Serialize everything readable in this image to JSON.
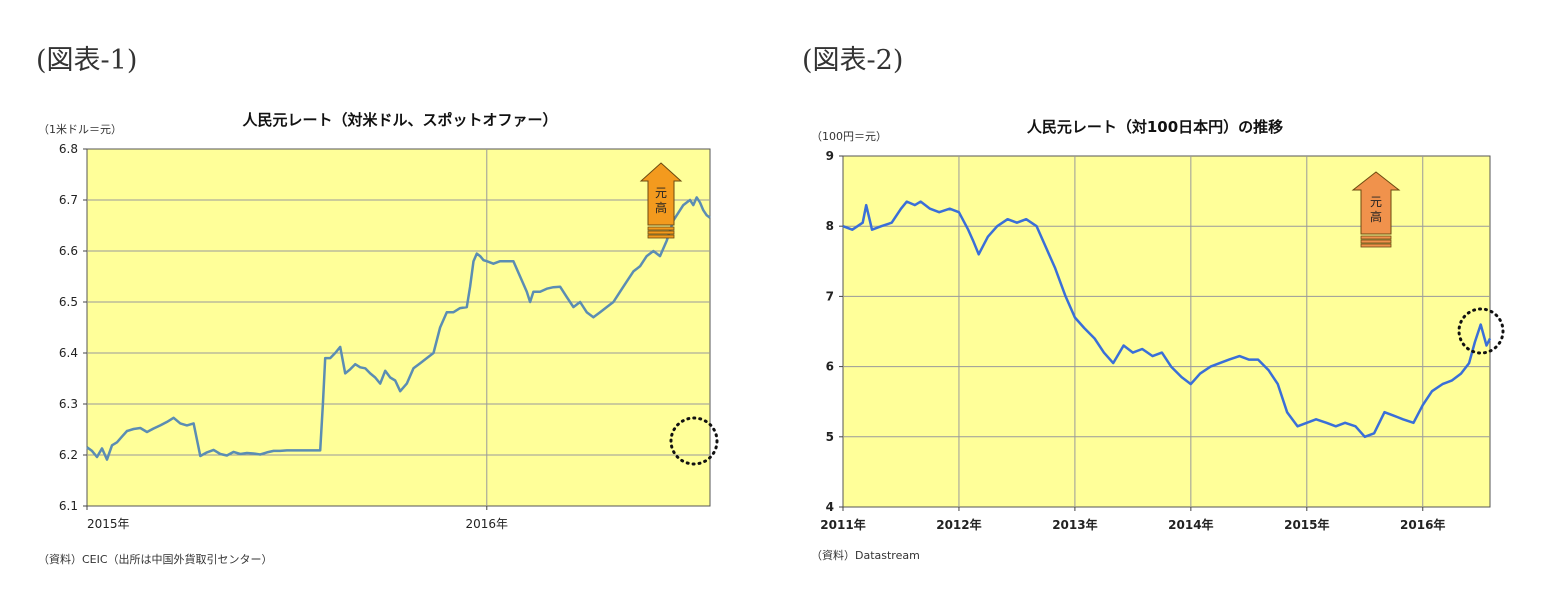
{
  "headings": [
    "(図表-1)",
    "(図表-2)"
  ],
  "colors": {
    "plot_bg": "#FFFF99",
    "grid": "#9A9A9A",
    "line1": "#5B8DB3",
    "line2": "#3A6FD8",
    "arrow1": "#F39A1E",
    "arrow2": "#F0924C"
  },
  "chart_data": [
    {
      "type": "line",
      "title": "人民元レート（対米ドル、スポットオファー）",
      "unit_label": "（1米ドル＝元）",
      "y_inverted": true,
      "ylim": [
        6.8,
        6.1
      ],
      "yticks": [
        "6.1",
        "6.2",
        "6.3",
        "6.4",
        "6.5",
        "6.6",
        "6.7",
        "6.8"
      ],
      "xlim": [
        0,
        18.7
      ],
      "x_tick_labels": [
        {
          "label": "2015年",
          "x": 0
        },
        {
          "label": "2016年",
          "x": 12
        }
      ],
      "arrow_label": [
        "元",
        "高"
      ],
      "source": "（資料）CEIC（出所は中国外貨取引センター）",
      "grid": true,
      "series": [
        {
          "x": [
            0,
            0.15,
            0.3,
            0.45,
            0.6,
            0.75,
            0.9,
            1.05,
            1.2,
            1.4,
            1.6,
            1.8,
            2.0,
            2.2,
            2.4,
            2.6,
            2.8,
            3.0,
            3.2,
            3.4,
            3.6,
            3.8,
            4.0,
            4.2,
            4.4,
            4.6,
            4.8,
            5.0,
            5.2,
            5.4,
            5.6,
            5.8,
            6.0,
            6.2,
            6.4,
            6.6,
            6.8,
            7.0,
            7.08,
            7.15,
            7.3,
            7.45,
            7.6,
            7.75,
            7.9,
            8.05,
            8.2,
            8.35,
            8.5,
            8.65,
            8.8,
            8.95,
            9.1,
            9.25,
            9.4,
            9.6,
            9.8,
            10.0,
            10.2,
            10.4,
            10.6,
            10.8,
            11.0,
            11.2,
            11.4,
            11.5,
            11.6,
            11.7,
            11.8,
            11.9,
            12.0,
            12.2,
            12.4,
            12.6,
            12.8,
            13.0,
            13.2,
            13.3,
            13.4,
            13.6,
            13.8,
            14.0,
            14.2,
            14.4,
            14.6,
            14.8,
            15.0,
            15.2,
            15.4,
            15.6,
            15.8,
            16.0,
            16.2,
            16.4,
            16.6,
            16.8,
            17.0,
            17.2,
            17.4,
            17.6,
            17.8,
            17.9,
            18.0,
            18.1,
            18.2,
            18.3,
            18.4,
            18.5,
            18.6,
            18.7
          ],
          "values": [
            6.215,
            6.208,
            6.196,
            6.213,
            6.191,
            6.219,
            6.225,
            6.236,
            6.247,
            6.251,
            6.253,
            6.245,
            6.252,
            6.258,
            6.265,
            6.273,
            6.262,
            6.258,
            6.262,
            6.198,
            6.205,
            6.21,
            6.202,
            6.199,
            6.206,
            6.202,
            6.204,
            6.203,
            6.201,
            6.205,
            6.208,
            6.208,
            6.209,
            6.209,
            6.209,
            6.209,
            6.209,
            6.209,
            6.3,
            6.39,
            6.39,
            6.4,
            6.412,
            6.36,
            6.368,
            6.378,
            6.372,
            6.37,
            6.36,
            6.352,
            6.34,
            6.365,
            6.352,
            6.346,
            6.325,
            6.34,
            6.37,
            6.38,
            6.39,
            6.4,
            6.45,
            6.48,
            6.48,
            6.488,
            6.49,
            6.53,
            6.58,
            6.595,
            6.59,
            6.582,
            6.58,
            6.575,
            6.58,
            6.58,
            6.58,
            6.55,
            6.52,
            6.5,
            6.52,
            6.52,
            6.526,
            6.529,
            6.53,
            6.51,
            6.49,
            6.5,
            6.48,
            6.47,
            6.48,
            6.49,
            6.5,
            6.52,
            6.54,
            6.56,
            6.57,
            6.59,
            6.6,
            6.59,
            6.62,
            6.66,
            6.68,
            6.69,
            6.695,
            6.7,
            6.69,
            6.705,
            6.695,
            6.68,
            6.67,
            6.665
          ]
        }
      ]
    },
    {
      "type": "line",
      "title": "人民元レート（対100日本円）の推移",
      "unit_label": "（100円＝元）",
      "y_inverted": false,
      "ylim": [
        4,
        9
      ],
      "yticks": [
        "4",
        "5",
        "6",
        "7",
        "8",
        "9"
      ],
      "xlim": [
        2011,
        2016.58
      ],
      "x_tick_labels": [
        {
          "label": "2011年",
          "x": 2011
        },
        {
          "label": "2012年",
          "x": 2012
        },
        {
          "label": "2013年",
          "x": 2013
        },
        {
          "label": "2014年",
          "x": 2014
        },
        {
          "label": "2015年",
          "x": 2015
        },
        {
          "label": "2016年",
          "x": 2016
        }
      ],
      "arrow_label": [
        "元",
        "高"
      ],
      "source": "（資料）Datastream",
      "grid": true,
      "series": [
        {
          "x": [
            2011.0,
            2011.08,
            2011.17,
            2011.2,
            2011.25,
            2011.33,
            2011.42,
            2011.5,
            2011.55,
            2011.62,
            2011.67,
            2011.75,
            2011.83,
            2011.92,
            2012.0,
            2012.08,
            2012.12,
            2012.17,
            2012.25,
            2012.33,
            2012.42,
            2012.5,
            2012.58,
            2012.67,
            2012.75,
            2012.83,
            2012.92,
            2013.0,
            2013.08,
            2013.17,
            2013.25,
            2013.33,
            2013.42,
            2013.5,
            2013.58,
            2013.67,
            2013.75,
            2013.83,
            2013.92,
            2014.0,
            2014.08,
            2014.17,
            2014.25,
            2014.33,
            2014.42,
            2014.5,
            2014.58,
            2014.67,
            2014.75,
            2014.83,
            2014.92,
            2015.0,
            2015.08,
            2015.17,
            2015.25,
            2015.33,
            2015.42,
            2015.5,
            2015.58,
            2015.67,
            2015.75,
            2015.83,
            2015.92,
            2016.0,
            2016.08,
            2016.17,
            2016.25,
            2016.33,
            2016.4,
            2016.45,
            2016.5,
            2016.55,
            2016.58
          ],
          "values": [
            8.0,
            7.95,
            8.05,
            8.3,
            7.95,
            8.0,
            8.05,
            8.25,
            8.35,
            8.3,
            8.35,
            8.25,
            8.2,
            8.25,
            8.2,
            7.95,
            7.8,
            7.6,
            7.85,
            8.0,
            8.1,
            8.05,
            8.1,
            8.0,
            7.7,
            7.4,
            7.0,
            6.7,
            6.55,
            6.4,
            6.2,
            6.05,
            6.3,
            6.2,
            6.25,
            6.15,
            6.2,
            6.0,
            5.85,
            5.75,
            5.9,
            6.0,
            6.05,
            6.1,
            6.15,
            6.1,
            6.1,
            5.95,
            5.75,
            5.35,
            5.15,
            5.2,
            5.25,
            5.2,
            5.15,
            5.2,
            5.15,
            5.0,
            5.05,
            5.35,
            5.3,
            5.25,
            5.2,
            5.45,
            5.65,
            5.75,
            5.8,
            5.9,
            6.05,
            6.35,
            6.6,
            6.3,
            6.4
          ]
        }
      ]
    }
  ]
}
